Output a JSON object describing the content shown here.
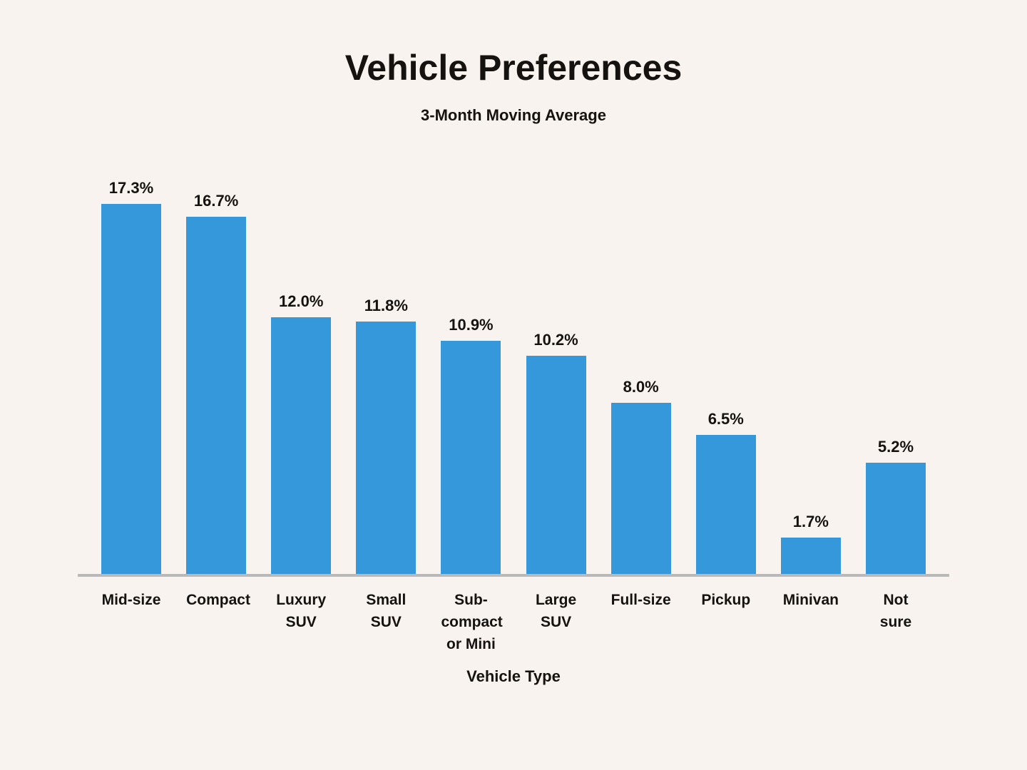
{
  "chart_data": {
    "type": "bar",
    "title": "Vehicle Preferences",
    "subtitle": "3-Month Moving Average",
    "xlabel": "Vehicle Type",
    "ylabel": "",
    "categories": [
      "Mid-size",
      "Compact",
      "Luxury\nSUV",
      "Small\nSUV",
      "Sub-\ncompact\nor Mini",
      "Large SUV",
      "Full-size",
      "Pickup",
      "Minivan",
      "Not sure"
    ],
    "values": [
      17.3,
      16.7,
      12.0,
      11.8,
      10.9,
      10.2,
      8.0,
      6.5,
      1.7,
      5.2
    ],
    "value_labels": [
      "17.3%",
      "16.7%",
      "12.0%",
      "11.8%",
      "10.9%",
      "10.2%",
      "8.0%",
      "6.5%",
      "1.7%",
      "5.2%"
    ],
    "ylim": [
      0,
      19
    ],
    "grid": false,
    "legend": "none",
    "bar_color": "#3498db",
    "background_color": "#f8f3ee",
    "axis_line_color": "#b9b9b9",
    "text_color": "#16120f"
  }
}
